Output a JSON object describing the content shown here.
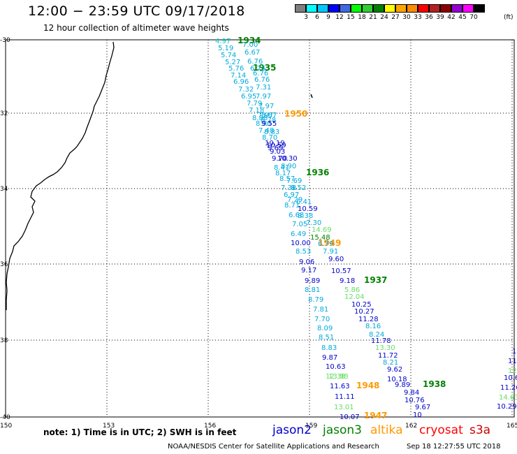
{
  "title": "12:00 − 23:59 UTC 09/17/2018",
  "subtitle": "12 hour collection of altimeter wave heights",
  "colorbar": {
    "colors": [
      "#7f7f7f",
      "#00ffff",
      "#00c8ff",
      "#0000ff",
      "#4169e1",
      "#00ff00",
      "#32cd32",
      "#008000",
      "#ffff00",
      "#ffa500",
      "#ff8c00",
      "#ff0000",
      "#b22222",
      "#8b0000",
      "#9400d3",
      "#ff00ff",
      "#000000"
    ],
    "labels": [
      "3",
      "6",
      "9",
      "12",
      "15",
      "18",
      "21",
      "24",
      "27",
      "30",
      "33",
      "36",
      "39",
      "42",
      "45",
      "70"
    ],
    "unit": "(ft)"
  },
  "axes": {
    "lat_labels": [
      "-30",
      "32",
      "34",
      "36",
      "38",
      "-40"
    ],
    "lon_labels": [
      "150",
      "153",
      "156",
      "159",
      "162",
      "165"
    ]
  },
  "satellite_colors": {
    "jason2": "#0000cc",
    "jason3": "#008000",
    "altika": "#ff9900",
    "cryosat": "#ff0000",
    "s3a": "#cc0000",
    "light_blue": "#00aadd",
    "cyan": "#00cccc",
    "green_light": "#66dd66"
  },
  "pass_labels": [
    {
      "text": "1934",
      "c": "jason3"
    },
    {
      "text": "1935",
      "c": "jason3"
    },
    {
      "text": "1950",
      "c": "altika"
    },
    {
      "text": "1936",
      "c": "jason3"
    },
    {
      "text": "1949",
      "c": "altika"
    },
    {
      "text": "1937",
      "c": "jason3"
    },
    {
      "text": "1948",
      "c": "altika"
    },
    {
      "text": "1938",
      "c": "jason3"
    },
    {
      "text": "1947",
      "c": "altika"
    }
  ],
  "wave_values": [
    {
      "t": "4.97",
      "c": "cyan"
    },
    {
      "t": "7.00",
      "c": "light_blue"
    },
    {
      "t": "5.19",
      "c": "light_blue"
    },
    {
      "t": "6.67",
      "c": "light_blue"
    },
    {
      "t": "5.74",
      "c": "light_blue"
    },
    {
      "t": "6.76",
      "c": "light_blue"
    },
    {
      "t": "5.27",
      "c": "light_blue"
    },
    {
      "t": "6.76",
      "c": "light_blue"
    },
    {
      "t": "5.76",
      "c": "light_blue"
    },
    {
      "t": "6.76",
      "c": "light_blue"
    },
    {
      "t": "7.14",
      "c": "light_blue"
    },
    {
      "t": "6.76",
      "c": "light_blue"
    },
    {
      "t": "6.96",
      "c": "light_blue"
    },
    {
      "t": "7.31",
      "c": "light_blue"
    },
    {
      "t": "7.32",
      "c": "light_blue"
    },
    {
      "t": "7.97",
      "c": "light_blue"
    },
    {
      "t": "6.95",
      "c": "light_blue"
    },
    {
      "t": "7.97",
      "c": "light_blue"
    },
    {
      "t": "7.79",
      "c": "light_blue"
    },
    {
      "t": "7.97",
      "c": "light_blue"
    },
    {
      "t": "7.18",
      "c": "light_blue"
    },
    {
      "t": "8.67",
      "c": "light_blue"
    },
    {
      "t": "8.88",
      "c": "light_blue"
    },
    {
      "t": "8.78",
      "c": "light_blue"
    },
    {
      "t": "8.90",
      "c": "light_blue"
    },
    {
      "t": "9.55",
      "c": "jason2"
    },
    {
      "t": "7.48",
      "c": "light_blue"
    },
    {
      "t": "8.83",
      "c": "light_blue"
    },
    {
      "t": "8.70",
      "c": "light_blue"
    },
    {
      "t": "10.19",
      "c": "jason2"
    },
    {
      "t": "10.59",
      "c": "jason2"
    },
    {
      "t": "9.69",
      "c": "jason2"
    },
    {
      "t": "9.03",
      "c": "jason2"
    },
    {
      "t": "9.70",
      "c": "jason2"
    },
    {
      "t": "10.30",
      "c": "jason2"
    },
    {
      "t": "8.41",
      "c": "light_blue"
    },
    {
      "t": "8.90",
      "c": "light_blue"
    },
    {
      "t": "8.17",
      "c": "light_blue"
    },
    {
      "t": "8.57",
      "c": "light_blue"
    },
    {
      "t": "7.69",
      "c": "light_blue"
    },
    {
      "t": "7.38",
      "c": "light_blue"
    },
    {
      "t": "8.52",
      "c": "light_blue"
    },
    {
      "t": "6.97",
      "c": "light_blue"
    },
    {
      "t": "7.29",
      "c": "light_blue"
    },
    {
      "t": "6.41",
      "c": "light_blue"
    },
    {
      "t": "8.71",
      "c": "light_blue"
    },
    {
      "t": "10.59",
      "c": "jason2"
    },
    {
      "t": "6.68",
      "c": "light_blue"
    },
    {
      "t": "8.38",
      "c": "light_blue"
    },
    {
      "t": "7.05",
      "c": "light_blue"
    },
    {
      "t": "7.30",
      "c": "light_blue"
    },
    {
      "t": "14.69",
      "c": "green_light"
    },
    {
      "t": "6.49",
      "c": "light_blue"
    },
    {
      "t": "15.48",
      "c": "jason3"
    },
    {
      "t": "10.00",
      "c": "jason2"
    },
    {
      "t": "6.79",
      "c": "light_blue"
    },
    {
      "t": "8.53",
      "c": "light_blue"
    },
    {
      "t": "7.91",
      "c": "light_blue"
    },
    {
      "t": "9.06",
      "c": "jason2"
    },
    {
      "t": "9.60",
      "c": "jason2"
    },
    {
      "t": "9.17",
      "c": "jason2"
    },
    {
      "t": "10.57",
      "c": "jason2"
    },
    {
      "t": "9.89",
      "c": "jason2"
    },
    {
      "t": "9.18",
      "c": "jason2"
    },
    {
      "t": "8.81",
      "c": "light_blue"
    },
    {
      "t": "5.86",
      "c": "green_light"
    },
    {
      "t": "12.04",
      "c": "green_light"
    },
    {
      "t": "8.79",
      "c": "light_blue"
    },
    {
      "t": "10.25",
      "c": "jason2"
    },
    {
      "t": "7.81",
      "c": "light_blue"
    },
    {
      "t": "10.27",
      "c": "jason2"
    },
    {
      "t": "7.70",
      "c": "light_blue"
    },
    {
      "t": "11.28",
      "c": "jason2"
    },
    {
      "t": "8.09",
      "c": "light_blue"
    },
    {
      "t": "8.16",
      "c": "light_blue"
    },
    {
      "t": "8.51",
      "c": "light_blue"
    },
    {
      "t": "8.24",
      "c": "light_blue"
    },
    {
      "t": "11.78",
      "c": "jason2"
    },
    {
      "t": "8.83",
      "c": "light_blue"
    },
    {
      "t": "13.30",
      "c": "green_light"
    },
    {
      "t": "9.87",
      "c": "jason2"
    },
    {
      "t": "11.72",
      "c": "jason2"
    },
    {
      "t": "10.63",
      "c": "jason2"
    },
    {
      "t": "8.21",
      "c": "light_blue"
    },
    {
      "t": "12.38",
      "c": "green_light"
    },
    {
      "t": "9.62",
      "c": "jason2"
    },
    {
      "t": "13.88",
      "c": "green_light"
    },
    {
      "t": "10.18",
      "c": "jason2"
    },
    {
      "t": "11.63",
      "c": "jason2"
    },
    {
      "t": "9.89",
      "c": "jason2"
    },
    {
      "t": "9.84",
      "c": "jason2"
    },
    {
      "t": "11.11",
      "c": "jason2"
    },
    {
      "t": "10.76",
      "c": "jason2"
    },
    {
      "t": "13.01",
      "c": "green_light"
    },
    {
      "t": "9.67",
      "c": "jason2"
    },
    {
      "t": "10.07",
      "c": "jason2"
    },
    {
      "t": "10",
      "c": "jason2"
    },
    {
      "t": "11.",
      "c": "jason2"
    },
    {
      "t": "11.",
      "c": "jason2"
    },
    {
      "t": "12.",
      "c": "green_light"
    },
    {
      "t": "10.6",
      "c": "jason2"
    },
    {
      "t": "11.26",
      "c": "jason2"
    },
    {
      "t": "14.63",
      "c": "green_light"
    },
    {
      "t": "10.29",
      "c": "jason2"
    }
  ],
  "note": "note: 1) Time is in UTC; 2) SWH is in feet",
  "legend": [
    {
      "name": "jason2",
      "c": "jason2"
    },
    {
      "name": "jason3",
      "c": "jason3"
    },
    {
      "name": "altika",
      "c": "altika"
    },
    {
      "name": "cryosat",
      "c": "cryosat"
    },
    {
      "name": "s3a",
      "c": "s3a"
    }
  ],
  "footer": "NOAA/NESDIS Center for Satellite Applications and Research",
  "footer_time": "Sep 18 12:27:55 UTC 2018"
}
